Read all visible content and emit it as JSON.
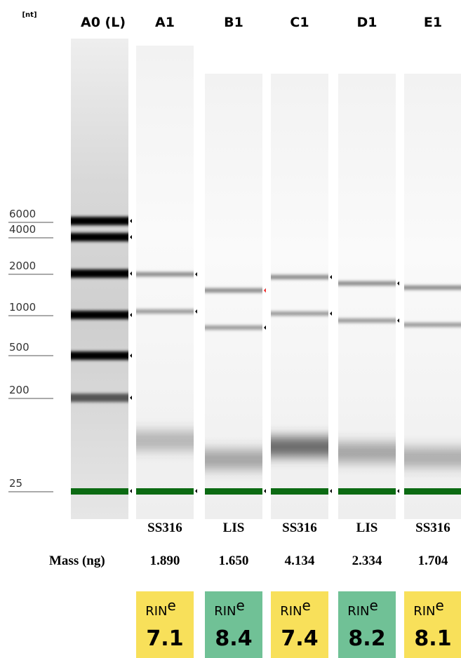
{
  "unit_label": "[nt]",
  "ladder_lane": "A0 (L)",
  "ladder": [
    "6000",
    "4000",
    "2000",
    "1000",
    "500",
    "200",
    "25"
  ],
  "mass_label": "Mass (ng)",
  "rin_label": "RIN",
  "rin_sup": "e",
  "lanes": [
    {
      "name": "A1",
      "sample": "SS316",
      "mass": "1.890",
      "rin": "7.1"
    },
    {
      "name": "B1",
      "sample": "LIS",
      "mass": "1.650",
      "rin": "8.4"
    },
    {
      "name": "C1",
      "sample": "SS316",
      "mass": "4.134",
      "rin": "7.4"
    },
    {
      "name": "D1",
      "sample": "LIS",
      "mass": "2.334",
      "rin": "8.2"
    },
    {
      "name": "E1",
      "sample": "SS316",
      "mass": "1.704",
      "rin": "8.1"
    }
  ]
}
